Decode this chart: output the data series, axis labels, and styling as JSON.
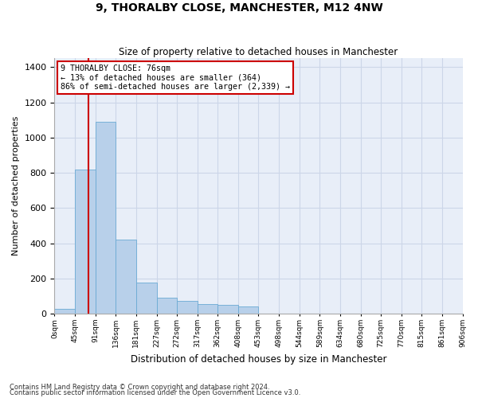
{
  "title": "9, THORALBY CLOSE, MANCHESTER, M12 4NW",
  "subtitle": "Size of property relative to detached houses in Manchester",
  "xlabel": "Distribution of detached houses by size in Manchester",
  "ylabel": "Number of detached properties",
  "footnote1": "Contains HM Land Registry data © Crown copyright and database right 2024.",
  "footnote2": "Contains public sector information licensed under the Open Government Licence v3.0.",
  "bar_edges": [
    0,
    45,
    91,
    136,
    181,
    227,
    272,
    317,
    362,
    408,
    453,
    498,
    544,
    589,
    634,
    680,
    725,
    770,
    815,
    861,
    906
  ],
  "bar_heights": [
    30,
    820,
    1090,
    420,
    175,
    90,
    75,
    55,
    50,
    40,
    0,
    0,
    0,
    0,
    0,
    0,
    0,
    0,
    0,
    0
  ],
  "bar_color": "#b8d0ea",
  "bar_edgecolor": "#6aaad4",
  "ylim": [
    0,
    1450
  ],
  "yticks": [
    0,
    200,
    400,
    600,
    800,
    1000,
    1200,
    1400
  ],
  "property_size": 76,
  "property_line_color": "#cc0000",
  "annotation_text": "9 THORALBY CLOSE: 76sqm\n← 13% of detached houses are smaller (364)\n86% of semi-detached houses are larger (2,339) →",
  "annotation_box_color": "#cc0000",
  "grid_color": "#ccd6e8",
  "background_color": "#e8eef8"
}
